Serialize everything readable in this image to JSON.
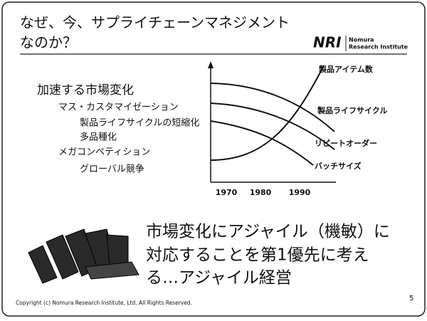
{
  "header": {
    "title_lines": [
      "なぜ、今、サプライチェーンマネジメント",
      "なのか？"
    ],
    "logo": {
      "mark": "NRI",
      "name_lines": [
        "Nomura",
        "Research Institute"
      ]
    }
  },
  "list": {
    "heading": "加速する市場変化",
    "items": [
      {
        "text": "マス・カスタマイゼーション",
        "level": 1
      },
      {
        "text": "製品ライフサイクルの短縮化",
        "level": 2
      },
      {
        "text": "多品種化",
        "level": 2
      },
      {
        "text": "メガコンペティション",
        "level": 1
      },
      {
        "text": "グローバル競争",
        "level": 2
      }
    ]
  },
  "trend_chart": {
    "x_labels": [
      "1970",
      "1980",
      "1990"
    ],
    "curve_labels": [
      "製品アイテム数",
      "製品ライフサイクル",
      "リピートオーダー",
      "バッチサイズ"
    ]
  },
  "message_lines": [
    "市場変化にアジャイル（機敏）に",
    "対応することを第1優先に考え",
    "る…アジャイル経営"
  ],
  "footer": {
    "copyright": "Copyright (c) Nomura Research Institute, Ltd. All Rights Reserved.",
    "page_number": "5"
  }
}
